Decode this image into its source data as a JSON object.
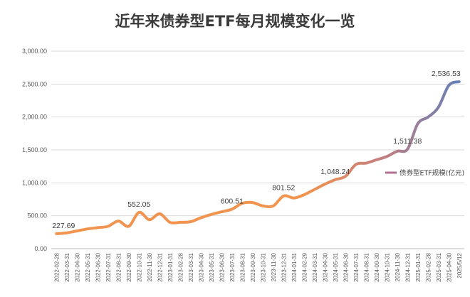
{
  "chart_data": {
    "type": "line",
    "title": "近年来债券型ETF每月规模变化一览",
    "xlabel": "",
    "ylabel": "",
    "ylim": [
      0,
      3000
    ],
    "yticks": [
      "0.00",
      "500.00",
      "1,000.00",
      "1,500.00",
      "2,000.00",
      "2,500.00",
      "3,000.00"
    ],
    "grid": "horizontal",
    "legend_position": "right",
    "x": [
      "2022-02-28",
      "2022-03-31",
      "2022-04-30",
      "2022-05-31",
      "2022-06-30",
      "2022-07-31",
      "2022-08-31",
      "2022-09-30",
      "2022-10-31",
      "2022-11-30",
      "2022-12-31",
      "2023-01-31",
      "2023-02-28",
      "2023-03-31",
      "2023-04-30",
      "2023-05-31",
      "2023-06-30",
      "2023-07-31",
      "2023-08-31",
      "2023-09-30",
      "2023-10-31",
      "2023-11-30",
      "2023-12-31",
      "2024-01-31",
      "2024-02-29",
      "2024-03-31",
      "2024-04-30",
      "2024-05-31",
      "2024-06-30",
      "2024-07-31",
      "2024-08-31",
      "2024-09-30",
      "2024-10-31",
      "2024-11-30",
      "2024-12-31",
      "2025-01-31",
      "2025-02-28",
      "2025-03-31",
      "2025-04-30",
      "2025/5/12"
    ],
    "series": [
      {
        "name": "债券型ETF规模(亿元)",
        "values": [
          227.69,
          240,
          270,
          300,
          320,
          340,
          420,
          340,
          552.05,
          440,
          530,
          400,
          400,
          410,
          470,
          520,
          560,
          600.51,
          690,
          700,
          650,
          650,
          801.52,
          770,
          820,
          900,
          980,
          1048.24,
          1100,
          1280,
          1300,
          1350,
          1400,
          1480,
          1511.38,
          1900,
          2000,
          2150,
          2480,
          2536.53
        ],
        "labeled_points": [
          {
            "x": "2022-02-28",
            "label": "227.69"
          },
          {
            "x": "2022-10-31",
            "label": "552.05"
          },
          {
            "x": "2023-07-31",
            "label": "600.51"
          },
          {
            "x": "2023-12-31",
            "label": "801.52"
          },
          {
            "x": "2024-05-31",
            "label": "1,048.24"
          },
          {
            "x": "2024-12-31",
            "label": "1,511.38"
          },
          {
            "x": "2025/5/12",
            "label": "2,536.53"
          }
        ]
      }
    ],
    "colors": {
      "line_start": "#f0944f",
      "line_mid": "#c47f80",
      "line_end": "#5e7fbd",
      "legend_line": "#b07090",
      "grid": "#d9d9d9",
      "axis": "#bfbfbf"
    }
  }
}
